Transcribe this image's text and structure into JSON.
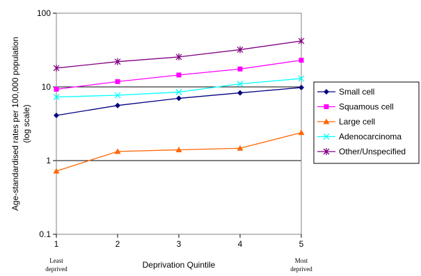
{
  "chart_data": {
    "type": "line",
    "title": "",
    "xlabel": "Deprivation Quintile",
    "ylabel": "Age-standardised rates per 100,000 population",
    "ylabel_sub": "(log scale)",
    "y_scale": "log",
    "ylim": [
      0.1,
      100
    ],
    "y_ticks": [
      "0.1",
      "1",
      "10",
      "100"
    ],
    "y_gridlines": [
      1,
      10,
      100
    ],
    "categories": [
      "1",
      "2",
      "3",
      "4",
      "5"
    ],
    "category_notes": {
      "first": [
        "Least",
        "deprived"
      ],
      "last": [
        "Most",
        "deprived"
      ]
    },
    "legend_position": "right",
    "series": [
      {
        "name": "Small cell",
        "color": "#00007f",
        "marker": "diamond",
        "values": [
          4.1,
          5.6,
          7.0,
          8.3,
          9.8
        ]
      },
      {
        "name": "Squamous cell",
        "color": "#ff00ff",
        "marker": "square",
        "values": [
          9.3,
          11.8,
          14.5,
          17.5,
          23.0
        ]
      },
      {
        "name": "Large cell",
        "color": "#ff6600",
        "marker": "triangle",
        "values": [
          0.72,
          1.33,
          1.4,
          1.47,
          2.4
        ]
      },
      {
        "name": "Adenocarcinoma",
        "color": "#00ffff",
        "marker": "x",
        "values": [
          7.3,
          7.7,
          8.5,
          11.0,
          13.0
        ]
      },
      {
        "name": "Other/Unspecified",
        "color": "#800080",
        "marker": "star",
        "values": [
          18.0,
          22.0,
          25.5,
          32.0,
          42.0
        ]
      }
    ]
  }
}
